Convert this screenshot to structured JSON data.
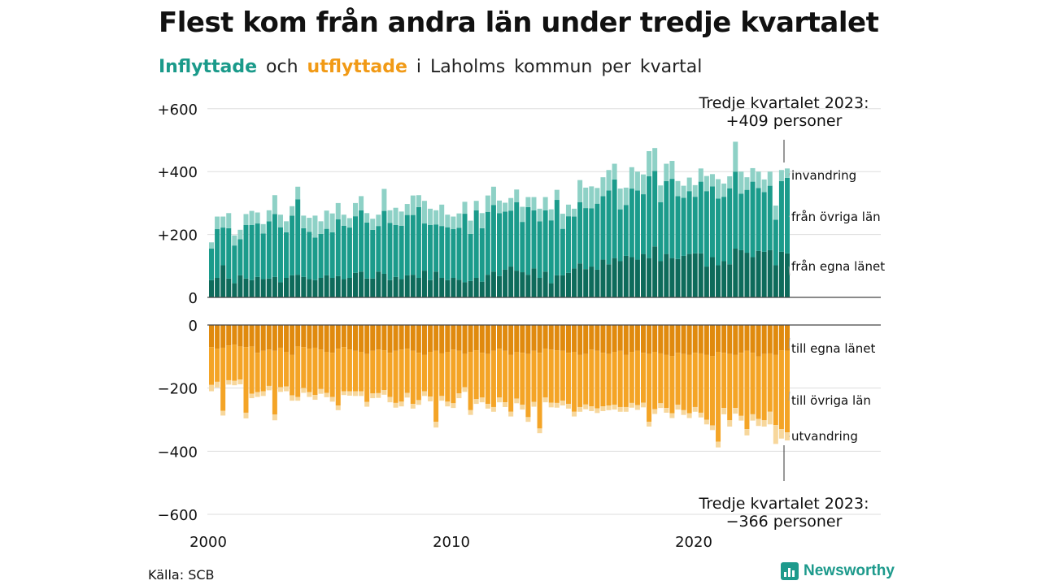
{
  "title": "Flest kom från andra län under tredje kvartalet",
  "subtitle": {
    "part1": "Inflyttade",
    "part2": "och",
    "part3": "utflyttade",
    "part4": "i Laholms kommun per kvartal"
  },
  "colors": {
    "in_own": "#0e6b5b",
    "in_other": "#1b9b8b",
    "in_imm": "#8ed1c6",
    "out_own": "#e08a0e",
    "out_other": "#f4a426",
    "out_emi": "#f7d79c",
    "grid": "#dddddd",
    "axis": "#444444"
  },
  "source": "Källa: SCB",
  "brand": "Newsworthy",
  "chart_data": {
    "type": "bar",
    "stacked": true,
    "x_start": "2000 Q1",
    "x_ticks": [
      "2000",
      "2010",
      "2020"
    ],
    "top_panel": {
      "ylim": [
        0,
        600
      ],
      "y_ticks": [
        "0",
        "+200",
        "+400",
        "+600"
      ],
      "series": [
        {
          "name": "från egna länet",
          "values": [
            55,
            62,
            102,
            60,
            45,
            70,
            60,
            55,
            65,
            58,
            60,
            65,
            48,
            62,
            70,
            72,
            65,
            58,
            55,
            62,
            70,
            62,
            68,
            58,
            62,
            78,
            82,
            60,
            60,
            82,
            75,
            55,
            65,
            58,
            70,
            72,
            62,
            85,
            55,
            82,
            62,
            55,
            62,
            56,
            48,
            52,
            62,
            50,
            72,
            82,
            68,
            88,
            98,
            85,
            80,
            72,
            92,
            62,
            82,
            45,
            70,
            70,
            78,
            92,
            108,
            90,
            98,
            88,
            120,
            105,
            125,
            115,
            132,
            128,
            120,
            138,
            125,
            162,
            115,
            138,
            125,
            122,
            132,
            138,
            140,
            140,
            98,
            128,
            102,
            115,
            105,
            155,
            150,
            142,
            128,
            148,
            145,
            150,
            102,
            145,
            140
          ]
        },
        {
          "name": "från övriga län",
          "values": [
            100,
            155,
            120,
            160,
            120,
            115,
            170,
            175,
            170,
            145,
            182,
            200,
            175,
            145,
            190,
            240,
            155,
            150,
            135,
            140,
            148,
            145,
            180,
            170,
            160,
            180,
            195,
            178,
            155,
            145,
            200,
            182,
            165,
            170,
            192,
            190,
            225,
            150,
            175,
            150,
            165,
            168,
            155,
            165,
            218,
            150,
            215,
            170,
            200,
            212,
            200,
            185,
            178,
            218,
            160,
            215,
            185,
            180,
            195,
            200,
            240,
            148,
            180,
            165,
            195,
            194,
            185,
            210,
            202,
            235,
            250,
            165,
            162,
            218,
            220,
            190,
            260,
            240,
            188,
            232,
            252,
            200,
            185,
            200,
            180,
            228,
            240,
            225,
            212,
            205,
            242,
            245,
            180,
            200,
            240,
            200,
            190,
            205,
            145,
            225,
            240
          ]
        },
        {
          "name": "invandring",
          "values": [
            20,
            40,
            35,
            48,
            32,
            30,
            35,
            45,
            35,
            30,
            35,
            60,
            40,
            35,
            30,
            40,
            40,
            45,
            70,
            40,
            58,
            60,
            52,
            35,
            30,
            42,
            45,
            30,
            35,
            36,
            70,
            40,
            55,
            45,
            35,
            62,
            38,
            72,
            52,
            45,
            68,
            40,
            40,
            46,
            38,
            42,
            30,
            48,
            52,
            58,
            40,
            28,
            40,
            40,
            48,
            32,
            42,
            40,
            42,
            35,
            32,
            48,
            37,
            25,
            70,
            65,
            70,
            50,
            60,
            65,
            50,
            66,
            55,
            68,
            60,
            63,
            80,
            73,
            53,
            55,
            57,
            48,
            38,
            43,
            37,
            42,
            48,
            39,
            62,
            42,
            38,
            95,
            70,
            40,
            43,
            52,
            40,
            45,
            45,
            35,
            30
          ]
        }
      ]
    },
    "bottom_panel": {
      "ylim": [
        -600,
        0
      ],
      "y_ticks": [
        "0",
        "−200",
        "−400",
        "−600"
      ],
      "series": [
        {
          "name": "till egna länet",
          "values": [
            -70,
            -75,
            -72,
            -65,
            -62,
            -68,
            -70,
            -68,
            -88,
            -82,
            -78,
            -82,
            -72,
            -85,
            -95,
            -68,
            -70,
            -75,
            -72,
            -78,
            -85,
            -88,
            -75,
            -70,
            -78,
            -82,
            -85,
            -92,
            -82,
            -78,
            -80,
            -88,
            -82,
            -78,
            -75,
            -82,
            -88,
            -95,
            -85,
            -82,
            -90,
            -85,
            -78,
            -82,
            -92,
            -85,
            -80,
            -88,
            -92,
            -82,
            -75,
            -82,
            -95,
            -85,
            -88,
            -92,
            -82,
            -88,
            -75,
            -78,
            -80,
            -82,
            -88,
            -85,
            -95,
            -92,
            -78,
            -82,
            -88,
            -92,
            -85,
            -82,
            -95,
            -85,
            -82,
            -88,
            -92,
            -85,
            -90,
            -95,
            -98,
            -88,
            -92,
            -95,
            -88,
            -90,
            -95,
            -98,
            -85,
            -88,
            -92,
            -95,
            -88,
            -82,
            -88,
            -100,
            -92,
            -90,
            -95,
            -80,
            -82
          ]
        },
        {
          "name": "till övriga län",
          "values": [
            -120,
            -105,
            -200,
            -110,
            -115,
            -105,
            -208,
            -150,
            -125,
            -128,
            -115,
            -202,
            -125,
            -110,
            -128,
            -160,
            -130,
            -138,
            -150,
            -125,
            -130,
            -140,
            -180,
            -140,
            -132,
            -128,
            -125,
            -152,
            -135,
            -138,
            -126,
            -140,
            -165,
            -165,
            -140,
            -168,
            -150,
            -115,
            -142,
            -225,
            -135,
            -158,
            -170,
            -135,
            -105,
            -185,
            -155,
            -142,
            -158,
            -178,
            -155,
            -163,
            -180,
            -148,
            -165,
            -200,
            -162,
            -240,
            -155,
            -168,
            -167,
            -158,
            -162,
            -190,
            -165,
            -160,
            -180,
            -182,
            -170,
            -163,
            -168,
            -178,
            -165,
            -162,
            -172,
            -158,
            -215,
            -182,
            -158,
            -168,
            -182,
            -165,
            -178,
            -185,
            -172,
            -188,
            -205,
            -220,
            -285,
            -175,
            -210,
            -168,
            -200,
            -248,
            -195,
            -198,
            -210,
            -185,
            -222,
            -250,
            -258
          ]
        },
        {
          "name": "utvandring",
          "values": [
            -20,
            -18,
            -15,
            -14,
            -14,
            -15,
            -18,
            -14,
            -15,
            -15,
            -14,
            -18,
            -15,
            -15,
            -17,
            -12,
            -15,
            -15,
            -15,
            -15,
            -14,
            -15,
            -15,
            -12,
            -14,
            -15,
            -15,
            -15,
            -15,
            -15,
            -15,
            -17,
            -15,
            -15,
            -15,
            -15,
            -15,
            -15,
            -15,
            -18,
            -15,
            -15,
            -15,
            -15,
            -15,
            -15,
            -15,
            -15,
            -15,
            -15,
            -15,
            -15,
            -15,
            -15,
            -15,
            -15,
            -15,
            -15,
            -15,
            -15,
            -15,
            -15,
            -15,
            -15,
            -15,
            -15,
            -15,
            -15,
            -15,
            -15,
            -15,
            -15,
            -15,
            -15,
            -15,
            -15,
            -15,
            -15,
            -15,
            -15,
            -15,
            -15,
            -15,
            -15,
            -15,
            -15,
            -15,
            -15,
            -18,
            -20,
            -20,
            -18,
            -15,
            -20,
            -20,
            -22,
            -20,
            -40,
            -60,
            -30,
            -26
          ]
        }
      ]
    },
    "annotations": {
      "top_label": "Tredje kvartalet 2023:",
      "top_value": "+409 personer",
      "bottom_label": "Tredje kvartalet 2023:",
      "bottom_value": "−366 personer"
    }
  }
}
